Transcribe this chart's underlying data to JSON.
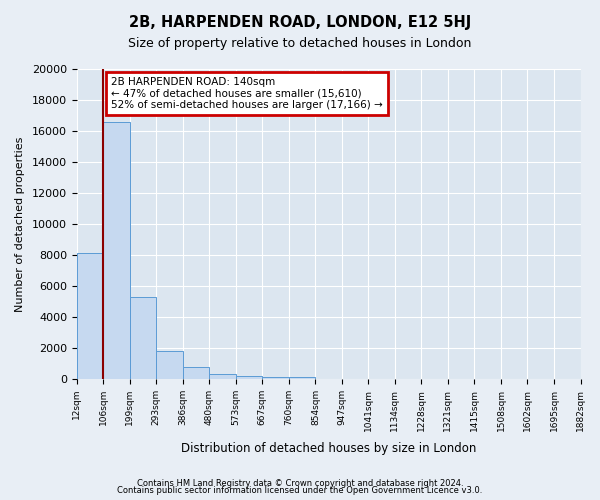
{
  "title": "2B, HARPENDEN ROAD, LONDON, E12 5HJ",
  "subtitle": "Size of property relative to detached houses in London",
  "xlabel": "Distribution of detached houses by size in London",
  "ylabel": "Number of detached properties",
  "bar_values": [
    8100,
    16600,
    5300,
    1800,
    800,
    300,
    200,
    150,
    100,
    0,
    0,
    0,
    0,
    0,
    0,
    0,
    0,
    0,
    0
  ],
  "bin_labels": [
    "12sqm",
    "106sqm",
    "199sqm",
    "293sqm",
    "386sqm",
    "480sqm",
    "573sqm",
    "667sqm",
    "760sqm",
    "854sqm",
    "947sqm",
    "1041sqm",
    "1134sqm",
    "1228sqm",
    "1321sqm",
    "1415sqm",
    "1508sqm",
    "1602sqm",
    "1695sqm",
    "1882sqm"
  ],
  "bar_color": "#c6d9f0",
  "bar_edge_color": "#5b9bd5",
  "red_line_x": 1,
  "annotation_title": "2B HARPENDEN ROAD: 140sqm",
  "annotation_line1": "← 47% of detached houses are smaller (15,610)",
  "annotation_line2": "52% of semi-detached houses are larger (17,166) →",
  "annotation_box_color": "#cc0000",
  "ylim": [
    0,
    20000
  ],
  "yticks": [
    0,
    2000,
    4000,
    6000,
    8000,
    10000,
    12000,
    14000,
    16000,
    18000,
    20000
  ],
  "footer1": "Contains HM Land Registry data © Crown copyright and database right 2024.",
  "footer2": "Contains public sector information licensed under the Open Government Licence v3.0.",
  "bg_color": "#e8eef5",
  "plot_bg_color": "#dce6f0"
}
